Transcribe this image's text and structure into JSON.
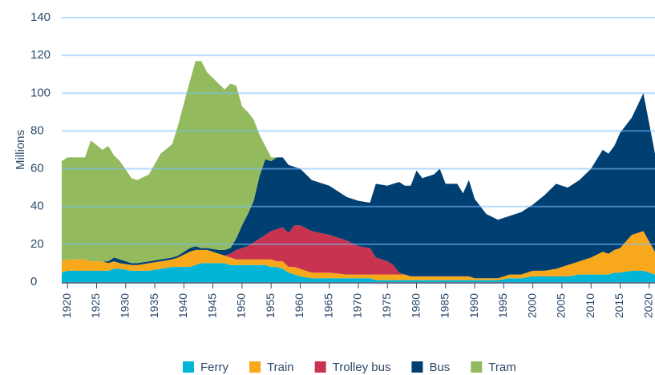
{
  "chart_data": {
    "type": "stacked_area",
    "ylabel": "Millions",
    "x": [
      1919,
      1920,
      1923,
      1924,
      1926,
      1927,
      1928,
      1929,
      1931,
      1932,
      1934,
      1936,
      1938,
      1939,
      1941,
      1942,
      1943,
      1944,
      1946,
      1947,
      1948,
      1949,
      1950,
      1951,
      1952,
      1953,
      1954,
      1955,
      1956,
      1957,
      1958,
      1959,
      1960,
      1962,
      1965,
      1968,
      1970,
      1972,
      1973,
      1975,
      1976,
      1977,
      1978,
      1979,
      1980,
      1981,
      1983,
      1984,
      1985,
      1987,
      1988,
      1989,
      1990,
      1992,
      1994,
      1996,
      1998,
      2000,
      2002,
      2004,
      2006,
      2008,
      2010,
      2012,
      2013,
      2014,
      2015,
      2017,
      2019,
      2021
    ],
    "series": [
      {
        "name": "Ferry",
        "color": "#00b5d8",
        "values": [
          5,
          6,
          6,
          6,
          6,
          6,
          7,
          7,
          6,
          6,
          6,
          7,
          8,
          8,
          8,
          9,
          10,
          10,
          10,
          10,
          9,
          9,
          9,
          9,
          9,
          9,
          9,
          8,
          8,
          7,
          5,
          4,
          3,
          2,
          2,
          2,
          2,
          2,
          1,
          1,
          1,
          1,
          1,
          1,
          1,
          1,
          1,
          1,
          1,
          1,
          1,
          1,
          1,
          1,
          1,
          2,
          2,
          3,
          3,
          3,
          3,
          4,
          4,
          4,
          4,
          5,
          5,
          6,
          6,
          4
        ]
      },
      {
        "name": "Train",
        "color": "#f7a81b",
        "values": [
          6,
          6,
          6,
          5,
          5,
          4,
          4,
          3,
          3,
          3,
          4,
          4,
          4,
          5,
          8,
          8,
          7,
          7,
          5,
          4,
          4,
          3,
          3,
          3,
          3,
          3,
          3,
          4,
          3,
          4,
          3,
          4,
          4,
          3,
          3,
          2,
          2,
          2,
          3,
          3,
          3,
          3,
          3,
          2,
          2,
          2,
          2,
          2,
          2,
          2,
          2,
          2,
          1,
          1,
          1,
          2,
          2,
          3,
          3,
          4,
          6,
          7,
          9,
          12,
          11,
          12,
          13,
          19,
          21,
          12
        ]
      },
      {
        "name": "Trolley bus",
        "color": "#c8334f",
        "values": [
          0,
          0,
          0,
          0,
          0,
          0,
          0,
          0,
          0,
          0,
          0,
          0,
          0,
          0,
          0,
          0,
          0,
          0,
          0,
          0,
          2,
          5,
          6,
          7,
          9,
          11,
          13,
          15,
          17,
          18,
          18,
          22,
          23,
          22,
          20,
          18,
          15,
          14,
          9,
          7,
          5,
          1,
          0,
          0,
          0,
          0,
          0,
          0,
          0,
          0,
          0,
          0,
          0,
          0,
          0,
          0,
          0,
          0,
          0,
          0,
          0,
          0,
          0,
          0,
          0,
          0,
          0,
          0,
          0,
          0
        ]
      },
      {
        "name": "Bus",
        "color": "#003f72",
        "values": [
          0,
          0,
          0,
          0,
          0,
          1,
          2,
          2,
          1,
          1,
          1,
          1,
          1,
          1,
          2,
          2,
          1,
          1,
          2,
          3,
          3,
          6,
          12,
          17,
          22,
          33,
          40,
          37,
          38,
          37,
          36,
          31,
          30,
          27,
          26,
          23,
          24,
          24,
          39,
          40,
          43,
          48,
          47,
          48,
          56,
          52,
          54,
          57,
          49,
          49,
          44,
          51,
          42,
          34,
          31,
          31,
          33,
          35,
          40,
          45,
          41,
          43,
          47,
          54,
          53,
          55,
          61,
          62,
          73,
          52
        ]
      },
      {
        "name": "Tram",
        "color": "#93ba5c",
        "values": [
          53,
          54,
          54,
          64,
          59,
          61,
          54,
          52,
          45,
          44,
          46,
          56,
          60,
          69,
          88,
          98,
          99,
          93,
          88,
          85,
          87,
          81,
          63,
          54,
          43,
          22,
          7,
          2,
          0,
          0,
          0,
          0,
          0,
          0,
          0,
          0,
          0,
          0,
          0,
          0,
          0,
          0,
          0,
          0,
          0,
          0,
          0,
          0,
          0,
          0,
          0,
          0,
          0,
          0,
          0,
          0,
          0,
          0,
          0,
          0,
          0,
          0,
          0,
          0,
          0,
          0,
          0,
          0,
          0,
          0
        ]
      }
    ],
    "xlim": [
      1919,
      2021
    ],
    "xticks": [
      1920,
      1925,
      1930,
      1935,
      1940,
      1945,
      1950,
      1955,
      1960,
      1965,
      1970,
      1975,
      1980,
      1985,
      1990,
      1995,
      2000,
      2005,
      2010,
      2015,
      2020
    ],
    "ylim": [
      0,
      140
    ],
    "yticks": [
      0,
      20,
      40,
      60,
      80,
      100,
      120,
      140
    ],
    "grid": true,
    "legend": "bottom"
  }
}
